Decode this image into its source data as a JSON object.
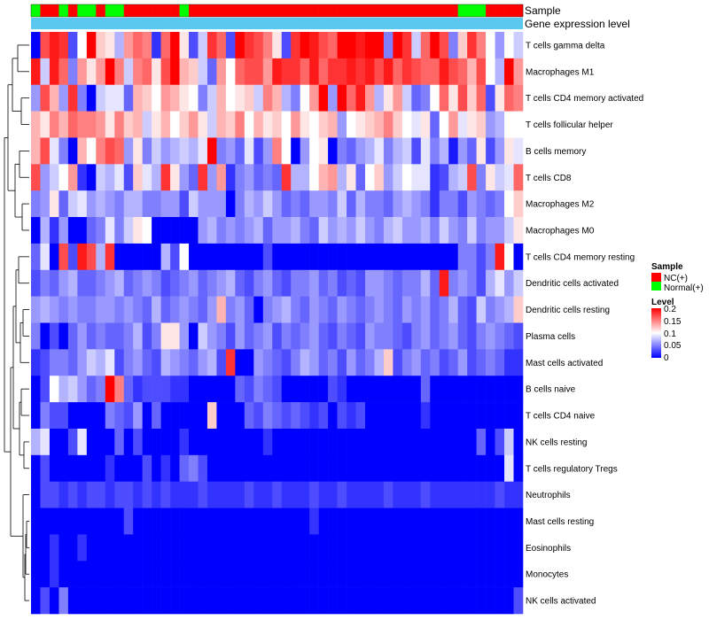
{
  "chart_data": {
    "type": "heatmap",
    "annotation_labels": {
      "sample": "Sample",
      "gene_expression": "Gene expression level"
    },
    "sample_colors": {
      "NC": "#ff0000",
      "Normal": "#00ff00"
    },
    "sample_groups": [
      "Normal",
      "NC",
      "NC",
      "Normal",
      "NC",
      "Normal",
      "Normal",
      "NC",
      "Normal",
      "Normal",
      "NC",
      "NC",
      "NC",
      "NC",
      "NC",
      "NC",
      "Normal",
      "NC",
      "NC",
      "NC",
      "NC",
      "NC",
      "NC",
      "NC",
      "NC",
      "NC",
      "NC",
      "NC",
      "NC",
      "NC",
      "NC",
      "NC",
      "NC",
      "NC",
      "NC",
      "NC",
      "NC",
      "NC",
      "NC",
      "NC",
      "NC",
      "NC",
      "NC",
      "NC",
      "NC",
      "NC",
      "Normal",
      "Normal",
      "Normal",
      "NC",
      "NC",
      "NC",
      "NC"
    ],
    "gene_expression_color": "#5bc8f0",
    "rows": [
      "T cells gamma delta",
      "Macrophages M1",
      "T cells CD4 memory activated",
      "T cells follicular helper",
      "B cells memory",
      "T cells CD8",
      "Macrophages M2",
      "Macrophages M0",
      "T cells CD4 memory resting",
      "Dendritic cells activated",
      "Dendritic cells resting",
      "Plasma cells",
      "Mast cells activated",
      "B cells naive",
      "T cells CD4 naive",
      "NK cells resting",
      "T cells regulatory  Tregs",
      "Neutrophils",
      "Mast cells resting",
      "Eosinophils",
      "Monocytes",
      "NK cells activated"
    ],
    "values": [
      [
        0.0,
        0.17,
        0.19,
        0.18,
        0.03,
        0.1,
        0.2,
        0.12,
        0.11,
        0.07,
        0.14,
        0.16,
        0.15,
        0.02,
        0.16,
        0.2,
        0.11,
        0.03,
        0.08,
        0.18,
        0.16,
        0.03,
        0.2,
        0.18,
        0.17,
        0.15,
        0.11,
        0.03,
        0.18,
        0.2,
        0.19,
        0.17,
        0.16,
        0.2,
        0.2,
        0.19,
        0.2,
        0.2,
        0.05,
        0.2,
        0.18,
        0.08,
        0.16,
        0.2,
        0.17,
        0.05,
        0.12,
        0.18,
        0.15,
        0.1,
        0.06,
        0.1,
        0.08
      ],
      [
        0.19,
        0.08,
        0.19,
        0.16,
        0.05,
        0.14,
        0.11,
        0.14,
        0.2,
        0.15,
        0.08,
        0.15,
        0.16,
        0.11,
        0.17,
        0.2,
        0.13,
        0.12,
        0.08,
        0.04,
        0.14,
        0.1,
        0.16,
        0.17,
        0.17,
        0.14,
        0.19,
        0.18,
        0.18,
        0.16,
        0.19,
        0.16,
        0.18,
        0.18,
        0.19,
        0.18,
        0.19,
        0.17,
        0.19,
        0.16,
        0.18,
        0.17,
        0.16,
        0.16,
        0.19,
        0.17,
        0.16,
        0.13,
        0.17,
        0.1,
        0.07,
        0.2,
        0.14
      ],
      [
        0.06,
        0.17,
        0.13,
        0.06,
        0.18,
        0.05,
        0.0,
        0.08,
        0.09,
        0.09,
        0.04,
        0.13,
        0.12,
        0.1,
        0.14,
        0.13,
        0.11,
        0.1,
        0.05,
        0.08,
        0.13,
        0.1,
        0.11,
        0.12,
        0.08,
        0.15,
        0.13,
        0.07,
        0.05,
        0.1,
        0.14,
        0.2,
        0.06,
        0.2,
        0.16,
        0.19,
        0.14,
        0.07,
        0.11,
        0.14,
        0.08,
        0.04,
        0.05,
        0.1,
        0.16,
        0.11,
        0.17,
        0.12,
        0.16,
        0.03,
        0.11,
        0.16,
        0.15
      ],
      [
        0.13,
        0.11,
        0.15,
        0.13,
        0.16,
        0.15,
        0.15,
        0.14,
        0.11,
        0.15,
        0.12,
        0.13,
        0.08,
        0.11,
        0.13,
        0.1,
        0.12,
        0.14,
        0.11,
        0.08,
        0.13,
        0.12,
        0.15,
        0.1,
        0.13,
        0.11,
        0.12,
        0.1,
        0.14,
        0.11,
        0.1,
        0.12,
        0.13,
        0.06,
        0.1,
        0.11,
        0.12,
        0.13,
        0.15,
        0.12,
        0.1,
        0.09,
        0.11,
        0.04,
        0.1,
        0.14,
        0.09,
        0.11,
        0.12,
        0.06,
        0.07,
        0.1,
        0.1
      ],
      [
        0.13,
        0.17,
        0.09,
        0.05,
        0.0,
        0.13,
        0.1,
        0.15,
        0.17,
        0.16,
        0.06,
        0.11,
        0.05,
        0.08,
        0.06,
        0.07,
        0.08,
        0.07,
        0.09,
        0.2,
        0.05,
        0.06,
        0.04,
        0.09,
        0.03,
        0.06,
        0.15,
        0.1,
        0.0,
        0.06,
        0.1,
        0.11,
        0.0,
        0.05,
        0.04,
        0.06,
        0.07,
        0.09,
        0.05,
        0.07,
        0.08,
        0.03,
        0.09,
        0.05,
        0.07,
        0.01,
        0.06,
        0.04,
        0.11,
        0.03,
        0.06,
        0.11,
        0.09
      ],
      [
        0.17,
        0.06,
        0.08,
        0.1,
        0.14,
        0.02,
        0.0,
        0.08,
        0.07,
        0.09,
        0.03,
        0.12,
        0.09,
        0.07,
        0.18,
        0.11,
        0.06,
        0.04,
        0.18,
        0.06,
        0.14,
        0.02,
        0.05,
        0.06,
        0.04,
        0.05,
        0.04,
        0.18,
        0.07,
        0.07,
        0.1,
        0.13,
        0.14,
        0.07,
        0.11,
        0.04,
        0.1,
        0.12,
        0.06,
        0.08,
        0.1,
        0.09,
        0.09,
        0.02,
        0.03,
        0.07,
        0.08,
        0.17,
        0.05,
        0.11,
        0.08,
        0.09,
        0.16
      ],
      [
        0.05,
        0.06,
        0.11,
        0.04,
        0.08,
        0.09,
        0.06,
        0.07,
        0.06,
        0.05,
        0.07,
        0.07,
        0.05,
        0.05,
        0.06,
        0.06,
        0.03,
        0.08,
        0.06,
        0.06,
        0.06,
        0.0,
        0.05,
        0.07,
        0.06,
        0.08,
        0.06,
        0.04,
        0.05,
        0.04,
        0.06,
        0.06,
        0.05,
        0.08,
        0.04,
        0.07,
        0.05,
        0.05,
        0.04,
        0.06,
        0.07,
        0.06,
        0.05,
        0.02,
        0.05,
        0.05,
        0.03,
        0.06,
        0.05,
        0.04,
        0.05,
        0.1,
        0.12
      ],
      [
        0.0,
        0.07,
        0.02,
        0.06,
        0.0,
        0.0,
        0.04,
        0.05,
        0.09,
        0.05,
        0.08,
        0.11,
        0.1,
        0.0,
        0.0,
        0.0,
        0.0,
        0.0,
        0.06,
        0.07,
        0.05,
        0.06,
        0.05,
        0.06,
        0.07,
        0.04,
        0.06,
        0.06,
        0.07,
        0.05,
        0.04,
        0.08,
        0.06,
        0.07,
        0.06,
        0.08,
        0.06,
        0.05,
        0.07,
        0.08,
        0.06,
        0.06,
        0.07,
        0.05,
        0.08,
        0.06,
        0.05,
        0.08,
        0.05,
        0.06,
        0.06,
        0.08,
        0.11
      ],
      [
        0.04,
        0.09,
        0.0,
        0.17,
        0.03,
        0.19,
        0.17,
        0.07,
        0.18,
        0.0,
        0.0,
        0.0,
        0.0,
        0.0,
        0.07,
        0.03,
        0.1,
        0.0,
        0.0,
        0.0,
        0.0,
        0.0,
        0.0,
        0.0,
        0.0,
        0.03,
        0.0,
        0.0,
        0.0,
        0.0,
        0.0,
        0.0,
        0.0,
        0.0,
        0.0,
        0.0,
        0.0,
        0.0,
        0.0,
        0.0,
        0.0,
        0.0,
        0.0,
        0.0,
        0.0,
        0.0,
        0.05,
        0.05,
        0.03,
        0.05,
        0.19,
        0.1,
        0.0
      ],
      [
        0.03,
        0.05,
        0.04,
        0.06,
        0.07,
        0.04,
        0.04,
        0.05,
        0.06,
        0.07,
        0.04,
        0.05,
        0.06,
        0.05,
        0.03,
        0.04,
        0.05,
        0.06,
        0.04,
        0.05,
        0.06,
        0.07,
        0.04,
        0.03,
        0.05,
        0.06,
        0.04,
        0.03,
        0.05,
        0.05,
        0.06,
        0.04,
        0.05,
        0.03,
        0.04,
        0.03,
        0.06,
        0.06,
        0.05,
        0.04,
        0.05,
        0.05,
        0.07,
        0.04,
        0.19,
        0.05,
        0.06,
        0.05,
        0.03,
        0.07,
        0.09,
        0.06,
        0.08
      ],
      [
        0.06,
        0.07,
        0.06,
        0.05,
        0.06,
        0.05,
        0.05,
        0.06,
        0.06,
        0.05,
        0.06,
        0.05,
        0.04,
        0.07,
        0.04,
        0.05,
        0.06,
        0.05,
        0.04,
        0.06,
        0.13,
        0.05,
        0.06,
        0.04,
        0.0,
        0.05,
        0.06,
        0.07,
        0.05,
        0.04,
        0.06,
        0.05,
        0.04,
        0.06,
        0.05,
        0.04,
        0.05,
        0.06,
        0.05,
        0.04,
        0.06,
        0.05,
        0.06,
        0.04,
        0.05,
        0.07,
        0.04,
        0.03,
        0.08,
        0.05,
        0.06,
        0.07,
        0.12
      ],
      [
        0.05,
        0.0,
        0.03,
        0.0,
        0.04,
        0.06,
        0.04,
        0.05,
        0.04,
        0.04,
        0.05,
        0.07,
        0.03,
        0.05,
        0.11,
        0.11,
        0.06,
        0.0,
        0.08,
        0.06,
        0.05,
        0.03,
        0.06,
        0.04,
        0.05,
        0.06,
        0.03,
        0.05,
        0.04,
        0.05,
        0.06,
        0.04,
        0.03,
        0.05,
        0.04,
        0.03,
        0.06,
        0.05,
        0.05,
        0.04,
        0.03,
        0.05,
        0.06,
        0.04,
        0.05,
        0.06,
        0.04,
        0.03,
        0.05,
        0.06,
        0.05,
        0.04,
        0.03
      ],
      [
        0.02,
        0.03,
        0.05,
        0.05,
        0.04,
        0.06,
        0.08,
        0.07,
        0.09,
        0.03,
        0.05,
        0.06,
        0.04,
        0.03,
        0.07,
        0.06,
        0.05,
        0.04,
        0.06,
        0.07,
        0.03,
        0.18,
        0.0,
        0.0,
        0.06,
        0.05,
        0.04,
        0.03,
        0.05,
        0.07,
        0.06,
        0.04,
        0.05,
        0.03,
        0.06,
        0.04,
        0.05,
        0.07,
        0.12,
        0.03,
        0.05,
        0.06,
        0.04,
        0.05,
        0.03,
        0.04,
        0.06,
        0.03,
        0.04,
        0.05,
        0.04,
        0.02,
        0.02
      ],
      [
        0.0,
        0.03,
        0.1,
        0.07,
        0.08,
        0.06,
        0.04,
        0.05,
        0.2,
        0.15,
        0.04,
        0.02,
        0.03,
        0.03,
        0.03,
        0.02,
        0.02,
        0.0,
        0.0,
        0.0,
        0.0,
        0.0,
        0.04,
        0.03,
        0.05,
        0.04,
        0.03,
        0.0,
        0.0,
        0.0,
        0.0,
        0.0,
        0.03,
        0.02,
        0.0,
        0.0,
        0.0,
        0.0,
        0.0,
        0.0,
        0.0,
        0.0,
        0.04,
        0.0,
        0.0,
        0.0,
        0.0,
        0.0,
        0.0,
        0.0,
        0.0,
        0.0,
        0.0
      ],
      [
        0.0,
        0.05,
        0.03,
        0.03,
        0.0,
        0.0,
        0.0,
        0.0,
        0.05,
        0.04,
        0.03,
        0.06,
        0.0,
        0.04,
        0.0,
        0.0,
        0.0,
        0.0,
        0.0,
        0.12,
        0.0,
        0.0,
        0.0,
        0.04,
        0.03,
        0.05,
        0.04,
        0.03,
        0.04,
        0.03,
        0.02,
        0.03,
        0.0,
        0.03,
        0.02,
        0.03,
        0.0,
        0.0,
        0.0,
        0.0,
        0.0,
        0.0,
        0.02,
        0.0,
        0.0,
        0.0,
        0.0,
        0.0,
        0.0,
        0.0,
        0.0,
        0.0,
        0.0
      ],
      [
        0.07,
        0.09,
        0.0,
        0.0,
        0.03,
        0.09,
        0.0,
        0.0,
        0.0,
        0.04,
        0.0,
        0.03,
        0.0,
        0.0,
        0.0,
        0.0,
        0.02,
        0.0,
        0.0,
        0.0,
        0.0,
        0.0,
        0.0,
        0.0,
        0.0,
        0.02,
        0.0,
        0.0,
        0.0,
        0.0,
        0.0,
        0.0,
        0.0,
        0.0,
        0.0,
        0.0,
        0.0,
        0.0,
        0.0,
        0.0,
        0.0,
        0.0,
        0.0,
        0.0,
        0.0,
        0.0,
        0.0,
        0.0,
        0.04,
        0.0,
        0.03,
        0.08,
        0.0
      ],
      [
        0.0,
        0.03,
        0.0,
        0.0,
        0.0,
        0.0,
        0.0,
        0.0,
        0.02,
        0.0,
        0.0,
        0.0,
        0.03,
        0.0,
        0.02,
        0.0,
        0.04,
        0.05,
        0.03,
        0.0,
        0.0,
        0.0,
        0.0,
        0.0,
        0.0,
        0.0,
        0.0,
        0.0,
        0.0,
        0.0,
        0.0,
        0.0,
        0.0,
        0.0,
        0.0,
        0.0,
        0.0,
        0.0,
        0.0,
        0.0,
        0.0,
        0.0,
        0.0,
        0.0,
        0.0,
        0.0,
        0.0,
        0.0,
        0.0,
        0.0,
        0.0,
        0.09,
        0.0
      ],
      [
        0.0,
        0.03,
        0.03,
        0.02,
        0.03,
        0.02,
        0.03,
        0.03,
        0.02,
        0.03,
        0.03,
        0.02,
        0.03,
        0.02,
        0.03,
        0.02,
        0.02,
        0.02,
        0.03,
        0.02,
        0.02,
        0.02,
        0.02,
        0.03,
        0.02,
        0.02,
        0.03,
        0.02,
        0.02,
        0.02,
        0.03,
        0.02,
        0.02,
        0.03,
        0.02,
        0.02,
        0.02,
        0.02,
        0.03,
        0.02,
        0.02,
        0.02,
        0.03,
        0.02,
        0.02,
        0.02,
        0.02,
        0.02,
        0.02,
        0.02,
        0.03,
        0.02,
        0.02
      ],
      [
        0.0,
        0.0,
        0.0,
        0.0,
        0.0,
        0.0,
        0.0,
        0.0,
        0.0,
        0.0,
        0.03,
        0.0,
        0.0,
        0.0,
        0.0,
        0.0,
        0.0,
        0.0,
        0.0,
        0.0,
        0.0,
        0.0,
        0.0,
        0.0,
        0.0,
        0.0,
        0.0,
        0.0,
        0.0,
        0.0,
        0.02,
        0.0,
        0.0,
        0.0,
        0.0,
        0.0,
        0.0,
        0.0,
        0.0,
        0.0,
        0.0,
        0.0,
        0.0,
        0.0,
        0.0,
        0.0,
        0.0,
        0.0,
        0.0,
        0.0,
        0.0,
        0.0,
        0.0
      ],
      [
        0.0,
        0.0,
        0.02,
        0.0,
        0.0,
        0.02,
        0.0,
        0.0,
        0.0,
        0.0,
        0.0,
        0.0,
        0.0,
        0.0,
        0.0,
        0.0,
        0.0,
        0.0,
        0.0,
        0.0,
        0.0,
        0.0,
        0.0,
        0.0,
        0.0,
        0.0,
        0.0,
        0.0,
        0.0,
        0.0,
        0.0,
        0.0,
        0.0,
        0.0,
        0.0,
        0.0,
        0.0,
        0.0,
        0.0,
        0.0,
        0.0,
        0.0,
        0.0,
        0.0,
        0.0,
        0.0,
        0.0,
        0.0,
        0.0,
        0.0,
        0.0,
        0.0,
        0.0
      ],
      [
        0.0,
        0.0,
        0.02,
        0.0,
        0.0,
        0.0,
        0.0,
        0.0,
        0.0,
        0.0,
        0.0,
        0.0,
        0.0,
        0.0,
        0.0,
        0.0,
        0.0,
        0.0,
        0.0,
        0.0,
        0.0,
        0.0,
        0.0,
        0.0,
        0.0,
        0.0,
        0.0,
        0.0,
        0.0,
        0.0,
        0.0,
        0.0,
        0.0,
        0.0,
        0.0,
        0.0,
        0.0,
        0.0,
        0.0,
        0.0,
        0.0,
        0.0,
        0.0,
        0.0,
        0.0,
        0.0,
        0.0,
        0.0,
        0.0,
        0.0,
        0.0,
        0.0,
        0.0
      ],
      [
        0.0,
        0.03,
        0.0,
        0.05,
        0.0,
        0.0,
        0.0,
        0.0,
        0.0,
        0.0,
        0.0,
        0.0,
        0.0,
        0.0,
        0.0,
        0.0,
        0.0,
        0.0,
        0.0,
        0.0,
        0.0,
        0.0,
        0.0,
        0.0,
        0.0,
        0.0,
        0.0,
        0.0,
        0.0,
        0.0,
        0.0,
        0.0,
        0.0,
        0.0,
        0.0,
        0.0,
        0.0,
        0.0,
        0.0,
        0.0,
        0.0,
        0.0,
        0.0,
        0.0,
        0.0,
        0.0,
        0.0,
        0.0,
        0.0,
        0.0,
        0.0,
        0.0,
        0.03
      ]
    ],
    "scale": {
      "min": 0,
      "max": 0.2,
      "mid": 0.1,
      "low_color": "#0000ff",
      "mid_color": "#ffffff",
      "high_color": "#ff0000"
    },
    "legend": {
      "sample_title": "Sample",
      "sample_items": [
        {
          "label": "NC(+)",
          "color": "#ff0000"
        },
        {
          "label": "Normal(+)",
          "color": "#00ff00"
        }
      ],
      "level_title": "Level",
      "level_ticks": [
        "0.2",
        "0.15",
        "0.1",
        "0.05",
        "0"
      ]
    },
    "dendrogram": "row clustering tree (left)"
  }
}
